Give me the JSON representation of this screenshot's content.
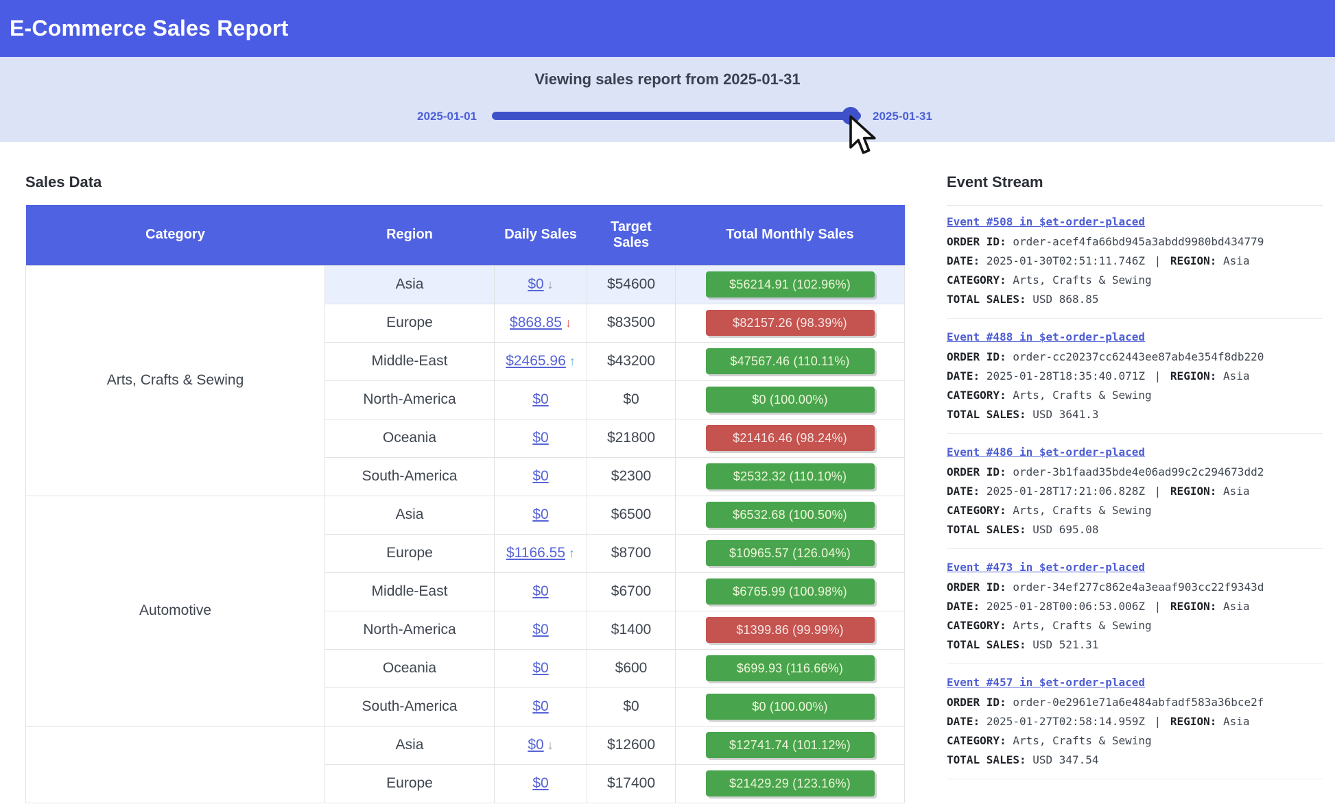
{
  "app": {
    "title": "E-Commerce Sales Report"
  },
  "slider": {
    "heading": "Viewing sales report from 2025-01-31",
    "start_label": "2025-01-01",
    "end_label": "2025-01-31",
    "value": "2025-01-31"
  },
  "sales": {
    "heading": "Sales Data",
    "columns": [
      "Category",
      "Region",
      "Daily Sales",
      "Target Sales",
      "Total Monthly Sales"
    ],
    "categories": [
      {
        "label": "Arts, Crafts & Sewing",
        "rowspan": 6
      },
      {
        "label": "Automotive",
        "rowspan": 6
      },
      {
        "label": "",
        "rowspan": 2
      }
    ],
    "rows": [
      {
        "region": "Asia",
        "daily": "$0",
        "trend": "down",
        "trend_color": "gray",
        "target": "$54600",
        "monthly": "$56214.91 (102.96%)",
        "status": "above",
        "highlighted": true
      },
      {
        "region": "Europe",
        "daily": "$868.85",
        "trend": "down",
        "trend_color": "red",
        "target": "$83500",
        "monthly": "$82157.26 (98.39%)",
        "status": "below"
      },
      {
        "region": "Middle-East",
        "daily": "$2465.96",
        "trend": "up",
        "trend_color": "blue",
        "target": "$43200",
        "monthly": "$47567.46 (110.11%)",
        "status": "above"
      },
      {
        "region": "North-America",
        "daily": "$0",
        "trend": null,
        "target": "$0",
        "monthly": "$0 (100.00%)",
        "status": "above"
      },
      {
        "region": "Oceania",
        "daily": "$0",
        "trend": null,
        "target": "$21800",
        "monthly": "$21416.46 (98.24%)",
        "status": "below"
      },
      {
        "region": "South-America",
        "daily": "$0",
        "trend": null,
        "target": "$2300",
        "monthly": "$2532.32 (110.10%)",
        "status": "above"
      },
      {
        "region": "Asia",
        "daily": "$0",
        "trend": null,
        "target": "$6500",
        "monthly": "$6532.68 (100.50%)",
        "status": "above"
      },
      {
        "region": "Europe",
        "daily": "$1166.55",
        "trend": "up",
        "trend_color": "blue",
        "target": "$8700",
        "monthly": "$10965.57 (126.04%)",
        "status": "above"
      },
      {
        "region": "Middle-East",
        "daily": "$0",
        "trend": null,
        "target": "$6700",
        "monthly": "$6765.99 (100.98%)",
        "status": "above"
      },
      {
        "region": "North-America",
        "daily": "$0",
        "trend": null,
        "target": "$1400",
        "monthly": "$1399.86 (99.99%)",
        "status": "below"
      },
      {
        "region": "Oceania",
        "daily": "$0",
        "trend": null,
        "target": "$600",
        "monthly": "$699.93 (116.66%)",
        "status": "above"
      },
      {
        "region": "South-America",
        "daily": "$0",
        "trend": null,
        "target": "$0",
        "monthly": "$0 (100.00%)",
        "status": "above"
      },
      {
        "region": "Asia",
        "daily": "$0",
        "trend": "down",
        "trend_color": "gray",
        "target": "$12600",
        "monthly": "$12741.74 (101.12%)",
        "status": "above"
      },
      {
        "region": "Europe",
        "daily": "$0",
        "trend": null,
        "target": "$17400",
        "monthly": "$21429.29 (123.16%)",
        "status": "above"
      }
    ]
  },
  "events": {
    "heading": "Event Stream",
    "labels": {
      "order_id": "ORDER ID:",
      "date": "DATE:",
      "region": "REGION:",
      "category": "CATEGORY:",
      "total_sales": "TOTAL SALES:",
      "separator": "|"
    },
    "items": [
      {
        "title": "Event #508 in $et-order-placed",
        "order_id": "order-acef4fa66bd945a3abdd9980bd434779",
        "date": "2025-01-30T02:51:11.746Z",
        "region": "Asia",
        "category": "Arts, Crafts & Sewing",
        "total_sales": "USD 868.85"
      },
      {
        "title": "Event #488 in $et-order-placed",
        "order_id": "order-cc20237cc62443ee87ab4e354f8db220",
        "date": "2025-01-28T18:35:40.071Z",
        "region": "Asia",
        "category": "Arts, Crafts & Sewing",
        "total_sales": "USD 3641.3"
      },
      {
        "title": "Event #486 in $et-order-placed",
        "order_id": "order-3b1faad35bde4e06ad99c2c294673dd2",
        "date": "2025-01-28T17:21:06.828Z",
        "region": "Asia",
        "category": "Arts, Crafts & Sewing",
        "total_sales": "USD 695.08"
      },
      {
        "title": "Event #473 in $et-order-placed",
        "order_id": "order-34ef277c862e4a3eaaf903cc22f9343d",
        "date": "2025-01-28T00:06:53.006Z",
        "region": "Asia",
        "category": "Arts, Crafts & Sewing",
        "total_sales": "USD 521.31"
      },
      {
        "title": "Event #457 in $et-order-placed",
        "order_id": "order-0e2961e71a6e484abfadf583a36bce2f",
        "date": "2025-01-27T02:58:14.959Z",
        "region": "Asia",
        "category": "Arts, Crafts & Sewing",
        "total_sales": "USD 347.54"
      }
    ]
  },
  "colors": {
    "header_bg": "#4a5ce4",
    "table_header_bg": "#4f63e2",
    "banner_bg": "#dce3f7",
    "slider": "#3f51c9",
    "link": "#5563d6",
    "positive_badge": "#49a54d",
    "negative_badge": "#c5534f",
    "row_highlight": "#e9effc"
  }
}
